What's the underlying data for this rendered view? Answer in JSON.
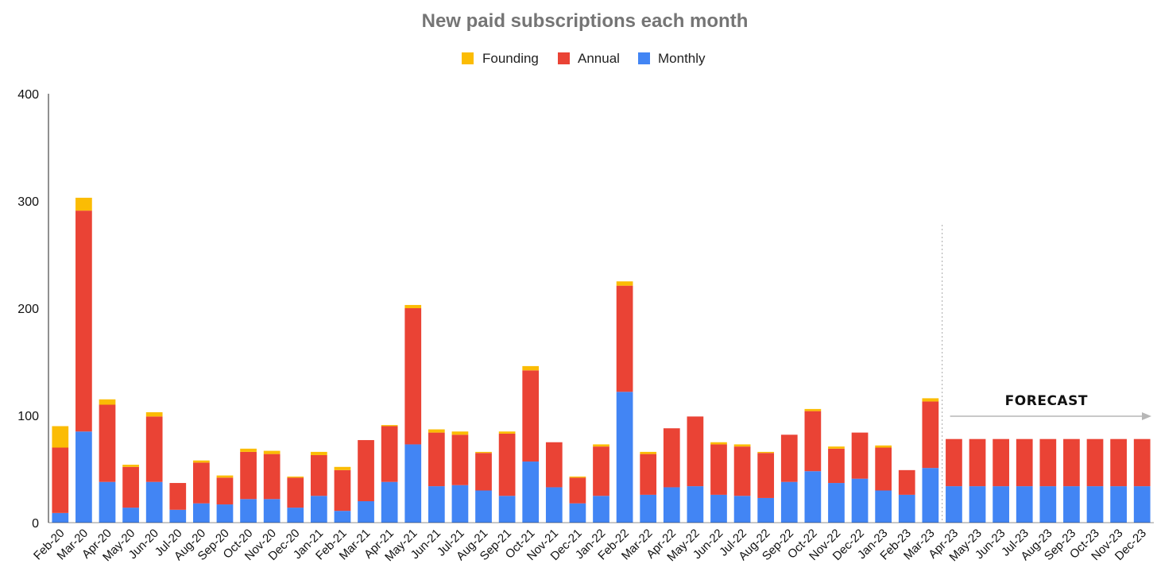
{
  "chart_data": {
    "type": "bar",
    "stacked": true,
    "title": "New paid subscriptions each month",
    "xlabel": "",
    "ylabel": "",
    "ylim": [
      0,
      400
    ],
    "yticks": [
      "0",
      "100",
      "200",
      "300",
      "400"
    ],
    "grid": false,
    "legend_position": "top-center",
    "categories": [
      "Feb-20",
      "Mar-20",
      "Apr-20",
      "May-20",
      "Jun-20",
      "Jul-20",
      "Aug-20",
      "Sep-20",
      "Oct-20",
      "Nov-20",
      "Dec-20",
      "Jan-21",
      "Feb-21",
      "Mar-21",
      "Apr-21",
      "May-21",
      "Jun-21",
      "Jul-21",
      "Aug-21",
      "Sep-21",
      "Oct-21",
      "Nov-21",
      "Dec-21",
      "Jan-22",
      "Feb-22",
      "Mar-22",
      "Apr-22",
      "May-22",
      "Jun-22",
      "Jul-22",
      "Aug-22",
      "Sep-22",
      "Oct-22",
      "Nov-22",
      "Dec-22",
      "Jan-23",
      "Feb-23",
      "Mar-23",
      "Apr-23",
      "May-23",
      "Jun-23",
      "Jul-23",
      "Aug-23",
      "Sep-23",
      "Oct-23",
      "Nov-23",
      "Dec-23"
    ],
    "series": [
      {
        "name": "Monthly",
        "color": "#4285f4",
        "values": [
          9,
          85,
          38,
          14,
          38,
          12,
          18,
          17,
          22,
          22,
          14,
          25,
          11,
          20,
          38,
          73,
          34,
          35,
          30,
          25,
          57,
          33,
          18,
          25,
          122,
          26,
          33,
          34,
          26,
          25,
          23,
          38,
          48,
          37,
          41,
          30,
          26,
          51,
          34,
          34,
          34,
          34,
          34,
          34,
          34,
          34,
          34
        ]
      },
      {
        "name": "Annual",
        "color": "#ea4335",
        "values": [
          61,
          206,
          72,
          38,
          61,
          25,
          38,
          25,
          44,
          42,
          28,
          38,
          38,
          57,
          52,
          127,
          50,
          47,
          35,
          58,
          85,
          42,
          24,
          46,
          99,
          38,
          55,
          65,
          47,
          46,
          42,
          44,
          56,
          32,
          43,
          40,
          23,
          62,
          44,
          44,
          44,
          44,
          44,
          44,
          44,
          44,
          44
        ]
      },
      {
        "name": "Founding",
        "color": "#fbbc04",
        "values": [
          20,
          12,
          5,
          2,
          4,
          0,
          2,
          2,
          3,
          3,
          1,
          3,
          3,
          0,
          1,
          3,
          3,
          3,
          1,
          2,
          4,
          0,
          1,
          2,
          4,
          2,
          0,
          0,
          2,
          2,
          1,
          0,
          2,
          2,
          0,
          2,
          0,
          3,
          0,
          0,
          0,
          0,
          0,
          0,
          0,
          0,
          0
        ]
      }
    ],
    "legend_order": [
      "Founding",
      "Annual",
      "Monthly"
    ],
    "annotation": {
      "label": "FORECAST",
      "start_category": "Apr-23",
      "end_category": "Dec-23"
    }
  }
}
